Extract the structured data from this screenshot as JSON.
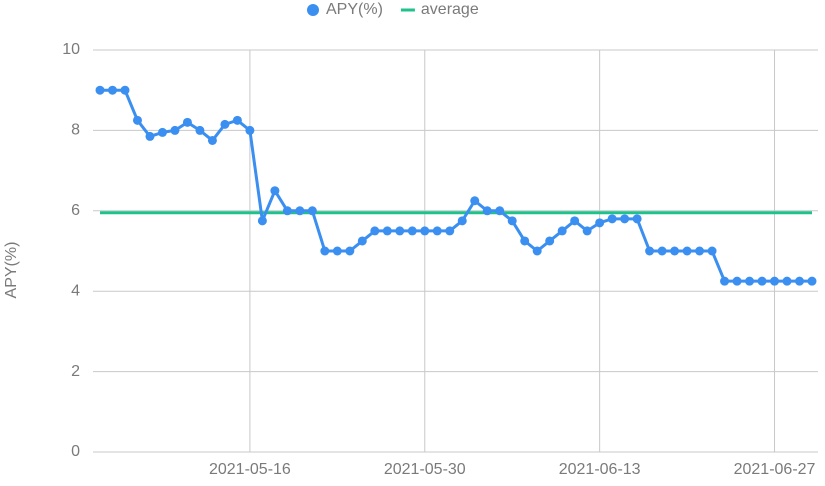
{
  "chart_data": {
    "type": "line",
    "x": [
      "2021-05-04",
      "2021-05-05",
      "2021-05-06",
      "2021-05-07",
      "2021-05-08",
      "2021-05-09",
      "2021-05-10",
      "2021-05-11",
      "2021-05-12",
      "2021-05-13",
      "2021-05-14",
      "2021-05-15",
      "2021-05-16",
      "2021-05-17",
      "2021-05-18",
      "2021-05-19",
      "2021-05-20",
      "2021-05-21",
      "2021-05-22",
      "2021-05-23",
      "2021-05-24",
      "2021-05-25",
      "2021-05-26",
      "2021-05-27",
      "2021-05-28",
      "2021-05-29",
      "2021-05-30",
      "2021-05-31",
      "2021-06-01",
      "2021-06-02",
      "2021-06-03",
      "2021-06-04",
      "2021-06-05",
      "2021-06-06",
      "2021-06-07",
      "2021-06-08",
      "2021-06-09",
      "2021-06-10",
      "2021-06-11",
      "2021-06-12",
      "2021-06-13",
      "2021-06-14",
      "2021-06-15",
      "2021-06-16",
      "2021-06-17",
      "2021-06-18",
      "2021-06-19",
      "2021-06-20",
      "2021-06-21",
      "2021-06-22",
      "2021-06-23",
      "2021-06-24",
      "2021-06-25",
      "2021-06-26",
      "2021-06-27",
      "2021-06-28",
      "2021-06-29",
      "2021-06-30"
    ],
    "series": [
      {
        "name": "APY(%)",
        "color": "#3b8ff0",
        "markers": true,
        "values": [
          9.0,
          9.0,
          9.0,
          8.25,
          7.85,
          7.95,
          8.0,
          8.2,
          8.0,
          7.75,
          8.15,
          8.25,
          8.0,
          5.75,
          6.5,
          6.0,
          6.0,
          6.0,
          5.0,
          5.0,
          5.0,
          5.25,
          5.5,
          5.5,
          5.5,
          5.5,
          5.5,
          5.5,
          5.5,
          5.75,
          6.25,
          6.0,
          6.0,
          5.75,
          5.25,
          5.0,
          5.25,
          5.5,
          5.75,
          5.5,
          5.7,
          5.8,
          5.8,
          5.8,
          5.0,
          5.0,
          5.0,
          5.0,
          5.0,
          5.0,
          4.25,
          4.25,
          4.25,
          4.25,
          4.25,
          4.25,
          4.25,
          4.25
        ]
      },
      {
        "name": "average",
        "color": "#1fc28b",
        "markers": false,
        "values": [
          5.95,
          5.95,
          5.95,
          5.95,
          5.95,
          5.95,
          5.95,
          5.95,
          5.95,
          5.95,
          5.95,
          5.95,
          5.95,
          5.95,
          5.95,
          5.95,
          5.95,
          5.95,
          5.95,
          5.95,
          5.95,
          5.95,
          5.95,
          5.95,
          5.95,
          5.95,
          5.95,
          5.95,
          5.95,
          5.95,
          5.95,
          5.95,
          5.95,
          5.95,
          5.95,
          5.95,
          5.95,
          5.95,
          5.95,
          5.95,
          5.95,
          5.95,
          5.95,
          5.95,
          5.95,
          5.95,
          5.95,
          5.95,
          5.95,
          5.95,
          5.95,
          5.95,
          5.95,
          5.95,
          5.95,
          5.95,
          5.95,
          5.95
        ]
      }
    ],
    "y_label": "APY(%)",
    "xticks": [
      "2021-05-16",
      "2021-05-30",
      "2021-06-13",
      "2021-06-27"
    ],
    "ylim": [
      0,
      10
    ],
    "yticks": [
      0,
      2,
      4,
      6,
      8,
      10
    ],
    "grid": true,
    "legend": "top"
  }
}
